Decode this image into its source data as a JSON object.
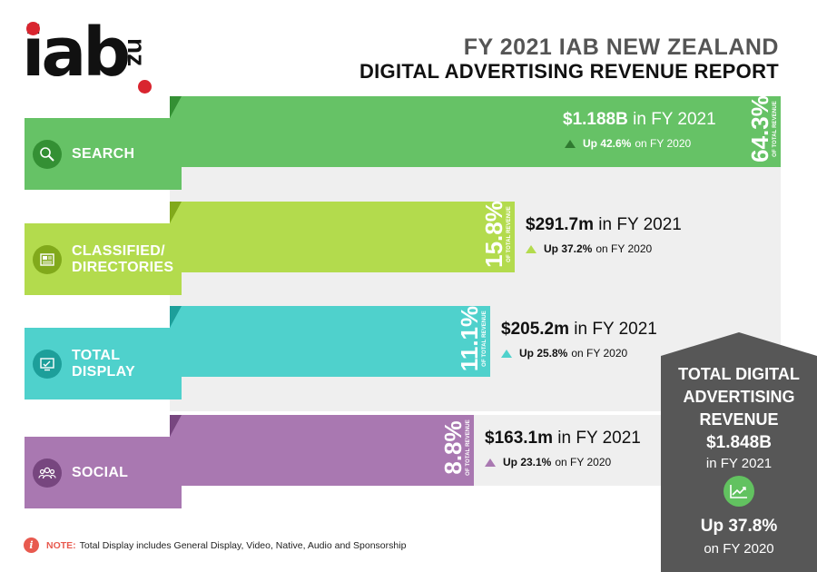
{
  "header": {
    "logo_text": "iab",
    "logo_suffix": "nz",
    "title_line1": "FY 2021 IAB NEW ZEALAND",
    "title_line2": "DIGITAL ADVERTISING REVENUE REPORT"
  },
  "chart_data": {
    "type": "bar",
    "orientation": "horizontal",
    "title": "FY 2021 IAB NEW ZEALAND DIGITAL ADVERTISING REVENUE REPORT",
    "categories": [
      "SEARCH",
      "CLASSIFIED/ DIRECTORIES",
      "TOTAL DISPLAY",
      "SOCIAL"
    ],
    "values": [
      64.3,
      15.8,
      11.1,
      8.8
    ],
    "items": [
      {
        "key": "search",
        "label_lines": [
          "SEARCH"
        ],
        "share": 64.3,
        "share_text": "64.3%",
        "share_caption": "OF TOTAL REVENUE",
        "revenue": "$1.188B",
        "revenue_suffix": "in FY 2021",
        "growth": "Up 42.6%",
        "growth_suffix": "on FY 2020",
        "color": "#66c266",
        "icon": "search-icon"
      },
      {
        "key": "classified",
        "label_lines": [
          "CLASSIFIED/",
          "DIRECTORIES"
        ],
        "share": 15.8,
        "share_text": "15.8%",
        "share_caption": "OF TOTAL REVENUE",
        "revenue": "$291.7m",
        "revenue_suffix": "in FY 2021",
        "growth": "Up 37.2%",
        "growth_suffix": "on FY 2020",
        "color": "#b3db4d",
        "icon": "newspaper-icon"
      },
      {
        "key": "display",
        "label_lines": [
          "TOTAL",
          "DISPLAY"
        ],
        "share": 11.1,
        "share_text": "11.1%",
        "share_caption": "OF TOTAL REVENUE",
        "revenue": "$205.2m",
        "revenue_suffix": "in FY 2021",
        "growth": "Up 25.8%",
        "growth_suffix": "on FY 2020",
        "color": "#4fd1cc",
        "icon": "monitor-icon"
      },
      {
        "key": "social",
        "label_lines": [
          "SOCIAL"
        ],
        "share": 8.8,
        "share_text": "8.8%",
        "share_caption": "OF TOTAL REVENUE",
        "revenue": "$163.1m",
        "revenue_suffix": "in FY 2021",
        "growth": "Up 23.1%",
        "growth_suffix": "on FY 2020",
        "color": "#a978b1",
        "icon": "people-icon"
      }
    ]
  },
  "total": {
    "line1": "TOTAL DIGITAL",
    "line2": "ADVERTISING",
    "line3": "REVENUE",
    "amount": "$1.848B",
    "period": "in FY 2021",
    "growth": "Up 37.8%",
    "growth_suffix": "on FY 2020",
    "icon": "trend-chart-icon",
    "panel_color": "#575757"
  },
  "note": {
    "label": "NOTE:",
    "text": "Total Display includes General Display, Video, Native, Audio and Sponsorship",
    "icon": "info-icon"
  }
}
